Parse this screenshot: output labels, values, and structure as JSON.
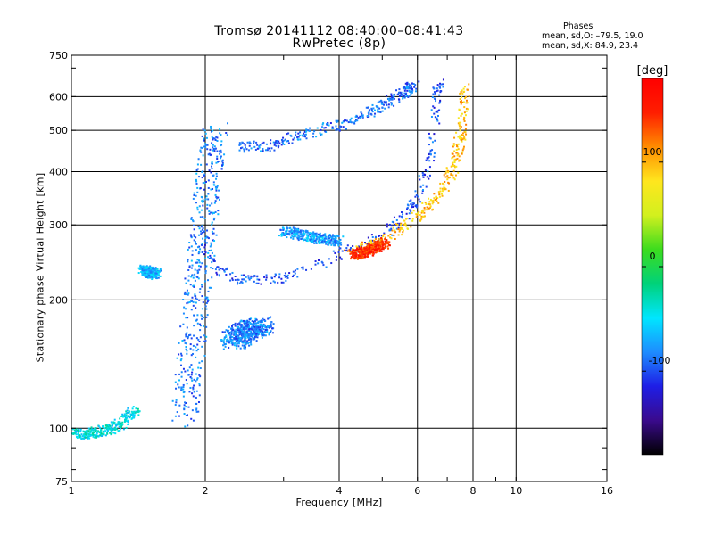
{
  "title_line1": "Tromsø 20141112 08:40:00–08:41:43",
  "title_line2": "RwPretec (8p)",
  "phase_info": {
    "heading": "Phases",
    "o_mode": "mean, sd,O: –79.5, 19.0",
    "x_mode": "mean, sd,X:  84.9, 23.4"
  },
  "chart_data": {
    "type": "scatter",
    "xlabel": "Frequency [MHz]",
    "ylabel": "Stationary phase Virtual Height [km]",
    "xscale": "log",
    "yscale": "log",
    "xlim": [
      1,
      16
    ],
    "ylim": [
      75,
      750
    ],
    "x_ticks": [
      1,
      2,
      4,
      6,
      8,
      10,
      16
    ],
    "y_ticks": [
      75,
      100,
      200,
      300,
      400,
      500,
      600,
      750
    ],
    "x_grid": [
      2,
      4,
      6,
      8,
      10
    ],
    "y_grid": [
      100,
      200,
      300,
      400,
      500,
      600
    ],
    "grid": true,
    "colorbar": {
      "label": "[deg]",
      "range": [
        -180,
        180
      ],
      "ticks": [
        -100,
        0,
        100
      ],
      "colormap": [
        "#000000",
        "#3a0a8c",
        "#1e1ee6",
        "#1e8cff",
        "#00e6ff",
        "#00d27a",
        "#3cdc1e",
        "#d2f01e",
        "#ffe61e",
        "#ff8c00",
        "#ff1e00",
        "#ff0000"
      ]
    },
    "traces": [
      {
        "mode": "O",
        "type": "curve",
        "points": [
          [
            2.0,
            270
          ],
          [
            2.1,
            240
          ],
          [
            2.3,
            225
          ],
          [
            2.6,
            222
          ],
          [
            3.0,
            225
          ],
          [
            3.5,
            240
          ],
          [
            4.0,
            255
          ],
          [
            4.6,
            270
          ],
          [
            5.2,
            290
          ],
          [
            5.7,
            320
          ],
          [
            6.1,
            360
          ],
          [
            6.4,
            420
          ],
          [
            6.55,
            500
          ],
          [
            6.65,
            600
          ],
          [
            6.7,
            650
          ]
        ],
        "phase": -100
      },
      {
        "mode": "X",
        "type": "curve",
        "points": [
          [
            4.2,
            258
          ],
          [
            4.8,
            270
          ],
          [
            5.4,
            290
          ],
          [
            6.0,
            315
          ],
          [
            6.6,
            345
          ],
          [
            7.1,
            390
          ],
          [
            7.4,
            440
          ],
          [
            7.55,
            520
          ],
          [
            7.7,
            640
          ]
        ],
        "phase": 95
      },
      {
        "mode": "X",
        "type": "curve",
        "points": [
          [
            4.3,
            255
          ],
          [
            4.7,
            262
          ],
          [
            5.1,
            272
          ]
        ],
        "phase": 145
      },
      {
        "mode": "F2-high",
        "type": "curve",
        "points": [
          [
            2.4,
            455
          ],
          [
            2.8,
            460
          ],
          [
            3.3,
            490
          ],
          [
            3.9,
            510
          ],
          [
            4.5,
            540
          ],
          [
            5.1,
            580
          ],
          [
            5.6,
            615
          ],
          [
            5.9,
            640
          ]
        ],
        "phase": -90
      },
      {
        "mode": "O",
        "type": "curve",
        "points": [
          [
            3.0,
            290
          ],
          [
            3.5,
            280
          ],
          [
            4.0,
            275
          ]
        ],
        "phase": -75
      },
      {
        "mode": "E",
        "type": "band",
        "points": [
          [
            1.8,
            105
          ],
          [
            1.85,
            140
          ],
          [
            1.9,
            190
          ],
          [
            1.95,
            250
          ],
          [
            2.0,
            320
          ],
          [
            2.05,
            420
          ],
          [
            2.1,
            500
          ]
        ],
        "phase": -85
      },
      {
        "mode": "E",
        "type": "band",
        "points": [
          [
            2.3,
            160
          ],
          [
            2.5,
            170
          ],
          [
            2.7,
            175
          ]
        ],
        "phase": -85
      },
      {
        "mode": "Es",
        "type": "curve",
        "points": [
          [
            1.45,
            235
          ],
          [
            1.55,
            230
          ]
        ],
        "phase": -65
      },
      {
        "mode": "low",
        "type": "curve",
        "points": [
          [
            1.0,
            97
          ],
          [
            1.1,
            97
          ],
          [
            1.25,
            100
          ],
          [
            1.4,
            110
          ]
        ],
        "phase": -45
      }
    ]
  }
}
